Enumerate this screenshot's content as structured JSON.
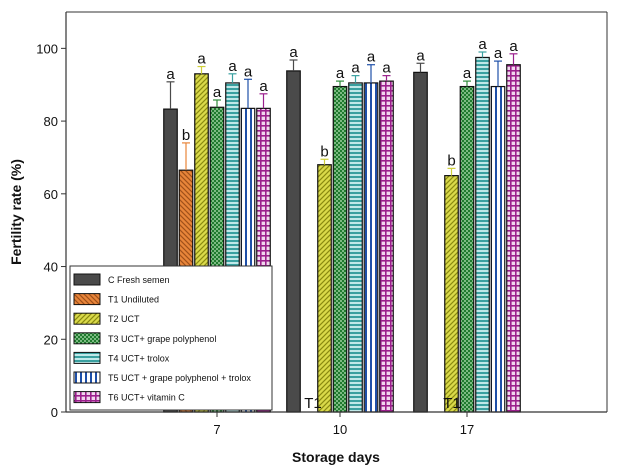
{
  "chart_data": {
    "type": "bar",
    "ylabel": "Fertility rate (%)",
    "xlabel": "Storage days",
    "ylim": [
      0,
      110
    ],
    "yticks": [
      "0",
      "20",
      "40",
      "60",
      "80",
      "100"
    ],
    "categories": [
      "7",
      "10",
      "17"
    ],
    "legend_position": "bottom-left",
    "series": [
      {
        "name": "C Fresh semen",
        "color": "#4a4a4a",
        "pattern": "solid",
        "values": [
          83.3,
          93.8,
          93.4
        ],
        "errors": [
          7.5,
          3,
          2.5
        ],
        "labels": [
          "a",
          "a",
          "a"
        ]
      },
      {
        "name": "T1 Undiluted",
        "color": "#e8853a",
        "pattern": "diag-back",
        "values": [
          66.5,
          null,
          null
        ],
        "errors": [
          7.5,
          null,
          null
        ],
        "labels": [
          "b",
          "",
          ""
        ]
      },
      {
        "name": "T2 UCT",
        "color": "#cfcf3a",
        "pattern": "diag-fwd",
        "values": [
          93,
          68,
          65
        ],
        "errors": [
          2,
          1.5,
          2
        ],
        "labels": [
          "a",
          "b",
          "b"
        ]
      },
      {
        "name": "T3 UCT+ grape polyphenol",
        "color": "#2e8b3a",
        "pattern": "dots",
        "values": [
          83.8,
          89.5,
          89.5
        ],
        "errors": [
          2,
          1.5,
          1.5
        ],
        "labels": [
          "a",
          "a",
          "a"
        ]
      },
      {
        "name": "T4 UCT+ trolox",
        "color": "#3aa0a0",
        "pattern": "hlines",
        "values": [
          90.5,
          90.5,
          97.5
        ],
        "errors": [
          2.5,
          2,
          1.5
        ],
        "labels": [
          "a",
          "a",
          "a"
        ]
      },
      {
        "name": "T5 UCT + grape polyphenol + trolox",
        "color": "#1e4fa8",
        "pattern": "vlines",
        "values": [
          83.5,
          90.5,
          89.5
        ],
        "errors": [
          8,
          5,
          7
        ],
        "labels": [
          "a",
          "a",
          "a"
        ]
      },
      {
        "name": "T6 UCT+ vitamin C",
        "color": "#9b1f8c",
        "pattern": "grid",
        "values": [
          83.5,
          91,
          95.5
        ],
        "errors": [
          4,
          1.5,
          3
        ],
        "labels": [
          "a",
          "a",
          "a"
        ]
      }
    ],
    "annotations": [
      "T1",
      "T1"
    ]
  }
}
